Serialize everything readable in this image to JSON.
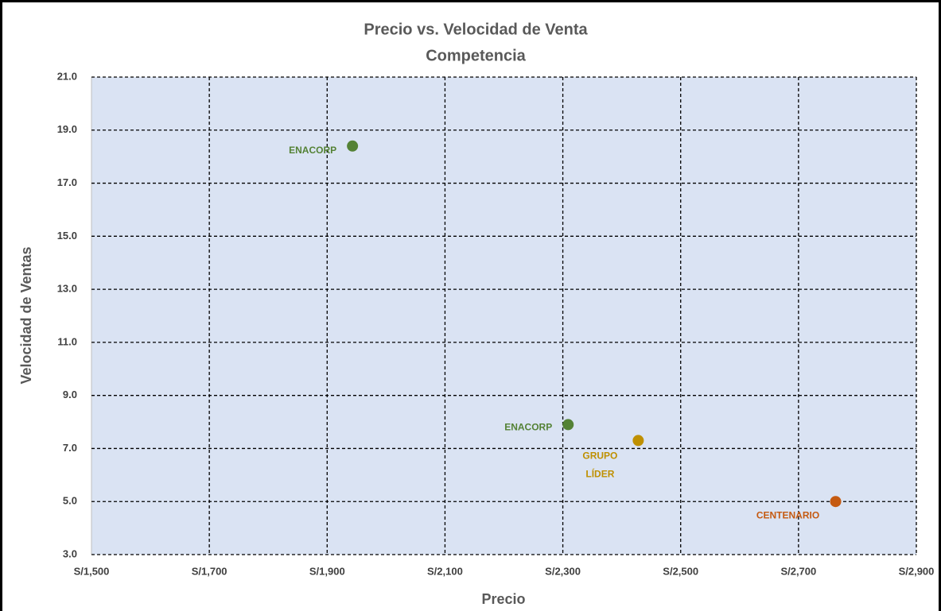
{
  "chart_data": {
    "type": "scatter",
    "title": "Precio vs. Velocidad de Venta",
    "subtitle": "Competencia",
    "x_label": "Precio",
    "y_label": "Velocidad de Ventas",
    "x": [
      1943,
      2309,
      2428,
      2763
    ],
    "values": [
      18.4,
      7.9,
      7.3,
      5.0
    ],
    "point_labels": [
      "ENACORP",
      "ENACORP",
      "GRUPO LÍDER",
      "CENTENARIO"
    ],
    "colors": [
      "#548235",
      "#548235",
      "#bf9000",
      "#c55a11"
    ],
    "xlim": [
      1500,
      2900
    ],
    "xticks": [
      {
        "value": 1500,
        "label": "S/1,500"
      },
      {
        "value": 1700,
        "label": "S/1,700"
      },
      {
        "value": 1900,
        "label": "S/1,900"
      },
      {
        "value": 2100,
        "label": "S/2,100"
      },
      {
        "value": 2300,
        "label": "S/2,300"
      },
      {
        "value": 2500,
        "label": "S/2,500"
      },
      {
        "value": 2700,
        "label": "S/2,700"
      },
      {
        "value": 2900,
        "label": "S/2,900"
      }
    ],
    "ylim": [
      3,
      21
    ],
    "yticks": [
      {
        "value": 3,
        "label": "3.0"
      },
      {
        "value": 5,
        "label": "5.0"
      },
      {
        "value": 7,
        "label": "7.0"
      },
      {
        "value": 9,
        "label": "9.0"
      },
      {
        "value": 11,
        "label": "11.0"
      },
      {
        "value": 13,
        "label": "13.0"
      },
      {
        "value": 15,
        "label": "15.0"
      },
      {
        "value": 17,
        "label": "17.0"
      },
      {
        "value": 19,
        "label": "19.0"
      },
      {
        "value": 21,
        "label": "21.0"
      }
    ],
    "grid": true
  }
}
